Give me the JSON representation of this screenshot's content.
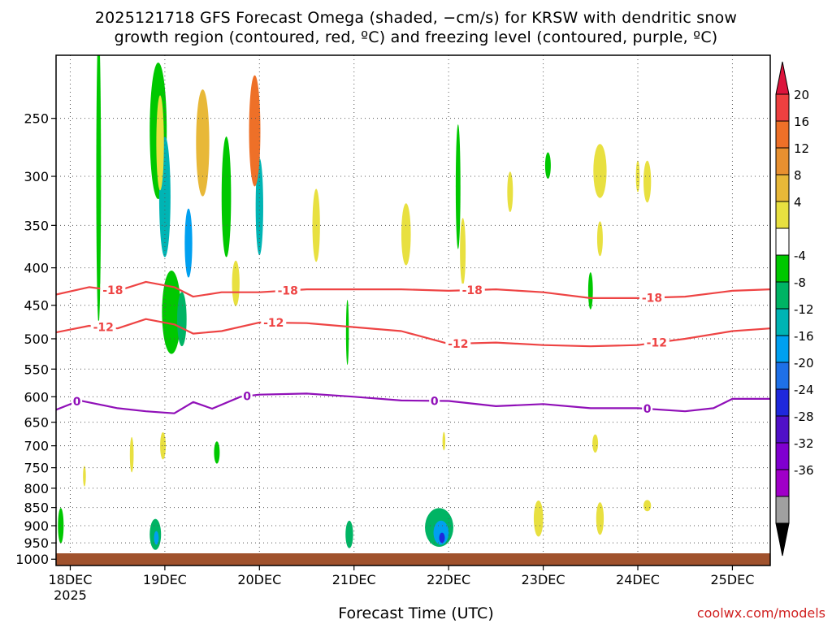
{
  "title_line1": "2025121718 GFS Forecast Omega (shaded, −cm/s) for KRSW with dendritic snow",
  "title_line2": "growth region (contoured, red, ºC) and freezing level (contoured, purple, ºC)",
  "credit": "coolwx.com/models",
  "chart_data": {
    "type": "heatmap",
    "xlabel": "Forecast Time (UTC)",
    "x_tick_labels": [
      "18DEC",
      "19DEC",
      "20DEC",
      "21DEC",
      "22DEC",
      "23DEC",
      "24DEC",
      "25DEC"
    ],
    "x_year_label": "2025",
    "x_range_days": [
      -0.15,
      7.4
    ],
    "y_tick_labels": [
      "250",
      "300",
      "350",
      "400",
      "450",
      "500",
      "550",
      "600",
      "650",
      "700",
      "750",
      "800",
      "850",
      "900",
      "950",
      "1000"
    ],
    "y_range_hpa": [
      205,
      1020
    ],
    "colorbar": {
      "labels": [
        "20",
        "16",
        "12",
        "8",
        "4",
        "-4",
        "-8",
        "-12",
        "-16",
        "-20",
        "-24",
        "-28",
        "-32",
        "-36"
      ],
      "colors": [
        "#dc143c",
        "#ee4040",
        "#ee7028",
        "#e89030",
        "#e8b838",
        "#e8e040",
        "#ffffff",
        "#00c800",
        "#00b464",
        "#00b4b4",
        "#00a0f0",
        "#1e70e8",
        "#1e28dc",
        "#5010c8",
        "#8000d0",
        "#a000c8",
        "#a0a0a0",
        "#000000"
      ]
    },
    "series": [
      {
        "name": "-18",
        "color": "#ee4444",
        "x": [
          -0.15,
          0.2,
          0.5,
          0.8,
          1.1,
          1.3,
          1.6,
          2.0,
          2.5,
          3.0,
          3.5,
          4.0,
          4.5,
          5.0,
          5.5,
          6.0,
          6.5,
          7.0,
          7.4
        ],
        "y": [
          435,
          425,
          430,
          418,
          425,
          438,
          432,
          432,
          428,
          428,
          428,
          430,
          428,
          432,
          440,
          440,
          438,
          430,
          428
        ],
        "labels": [
          {
            "x": 0.45,
            "text": "-18"
          },
          {
            "x": 2.3,
            "text": "-18"
          },
          {
            "x": 4.25,
            "text": "-18"
          },
          {
            "x": 6.15,
            "text": "-18"
          }
        ]
      },
      {
        "name": "-12",
        "color": "#ee4444",
        "x": [
          -0.15,
          0.2,
          0.5,
          0.8,
          1.1,
          1.3,
          1.6,
          2.0,
          2.5,
          3.0,
          3.5,
          4.0,
          4.5,
          5.0,
          5.5,
          6.0,
          6.5,
          7.0,
          7.4
        ],
        "y": [
          490,
          480,
          484,
          470,
          478,
          492,
          488,
          475,
          476,
          482,
          488,
          508,
          506,
          510,
          512,
          510,
          500,
          488,
          484
        ],
        "labels": [
          {
            "x": 0.35,
            "text": "-12"
          },
          {
            "x": 2.15,
            "text": "-12"
          },
          {
            "x": 4.1,
            "text": "-12"
          },
          {
            "x": 6.2,
            "text": "-12"
          }
        ]
      },
      {
        "name": "0",
        "color": "#9010b8",
        "x": [
          -0.15,
          0.1,
          0.5,
          0.8,
          1.1,
          1.3,
          1.5,
          1.8,
          2.0,
          2.5,
          3.0,
          3.5,
          4.0,
          4.5,
          5.0,
          5.5,
          6.0,
          6.5,
          6.8,
          7.0,
          7.4
        ],
        "y": [
          625,
          607,
          622,
          628,
          632,
          610,
          623,
          600,
          596,
          594,
          600,
          607,
          608,
          618,
          614,
          622,
          622,
          628,
          622,
          604,
          604
        ],
        "labels": [
          {
            "x": 0.07,
            "text": "0"
          },
          {
            "x": 1.87,
            "text": "0"
          },
          {
            "x": 3.85,
            "text": "0"
          },
          {
            "x": 6.1,
            "text": "0"
          }
        ]
      }
    ],
    "omega_regions": [
      {
        "x": 0.93,
        "y": 260,
        "rx": 0.09,
        "ry": 55,
        "v": -6
      },
      {
        "x": 1.0,
        "y": 320,
        "rx": 0.06,
        "ry": 60,
        "v": -12
      },
      {
        "x": 1.25,
        "y": 370,
        "rx": 0.04,
        "ry": 40,
        "v": -16
      },
      {
        "x": 1.07,
        "y": 460,
        "rx": 0.1,
        "ry": 60,
        "v": -6
      },
      {
        "x": 1.18,
        "y": 470,
        "rx": 0.05,
        "ry": 40,
        "v": -10
      },
      {
        "x": 0.3,
        "y": 300,
        "rx": 0.025,
        "ry": 130,
        "v": -6
      },
      {
        "x": 1.65,
        "y": 320,
        "rx": 0.05,
        "ry": 60,
        "v": -6
      },
      {
        "x": 2.0,
        "y": 330,
        "rx": 0.04,
        "ry": 50,
        "v": -14
      },
      {
        "x": 2.93,
        "y": 490,
        "rx": 0.015,
        "ry": 50,
        "v": -6
      },
      {
        "x": 4.1,
        "y": 310,
        "rx": 0.025,
        "ry": 60,
        "v": -6
      },
      {
        "x": 5.5,
        "y": 430,
        "rx": 0.025,
        "ry": 25,
        "v": -6
      },
      {
        "x": 5.05,
        "y": 290,
        "rx": 0.03,
        "ry": 12,
        "v": -6
      },
      {
        "x": 3.9,
        "y": 905,
        "rx": 0.15,
        "ry": 55,
        "v": -10
      },
      {
        "x": 3.92,
        "y": 920,
        "rx": 0.08,
        "ry": 35,
        "v": -16
      },
      {
        "x": 3.93,
        "y": 935,
        "rx": 0.03,
        "ry": 15,
        "v": -24
      },
      {
        "x": 0.9,
        "y": 925,
        "rx": 0.06,
        "ry": 45,
        "v": -8
      },
      {
        "x": 0.91,
        "y": 935,
        "rx": 0.025,
        "ry": 20,
        "v": -16
      },
      {
        "x": 2.95,
        "y": 925,
        "rx": 0.04,
        "ry": 40,
        "v": -8
      },
      {
        "x": 1.55,
        "y": 715,
        "rx": 0.03,
        "ry": 25,
        "v": -6
      },
      {
        "x": -0.1,
        "y": 900,
        "rx": 0.03,
        "ry": 50,
        "v": -6
      },
      {
        "x": 0.95,
        "y": 270,
        "rx": 0.04,
        "ry": 40,
        "v": 6
      },
      {
        "x": 1.4,
        "y": 270,
        "rx": 0.07,
        "ry": 45,
        "v": 8
      },
      {
        "x": 1.95,
        "y": 260,
        "rx": 0.06,
        "ry": 45,
        "v": 12
      },
      {
        "x": 2.6,
        "y": 350,
        "rx": 0.04,
        "ry": 40,
        "v": 6
      },
      {
        "x": 3.55,
        "y": 360,
        "rx": 0.05,
        "ry": 35,
        "v": 6
      },
      {
        "x": 4.15,
        "y": 380,
        "rx": 0.03,
        "ry": 40,
        "v": 6
      },
      {
        "x": 4.95,
        "y": 880,
        "rx": 0.05,
        "ry": 50,
        "v": 6
      },
      {
        "x": 5.6,
        "y": 295,
        "rx": 0.07,
        "ry": 25,
        "v": 6
      },
      {
        "x": 5.6,
        "y": 365,
        "rx": 0.03,
        "ry": 20,
        "v": 6
      },
      {
        "x": 5.6,
        "y": 880,
        "rx": 0.04,
        "ry": 45,
        "v": 6
      },
      {
        "x": 6.1,
        "y": 305,
        "rx": 0.04,
        "ry": 20,
        "v": 6
      },
      {
        "x": 6.1,
        "y": 845,
        "rx": 0.04,
        "ry": 15,
        "v": 6
      },
      {
        "x": 5.55,
        "y": 695,
        "rx": 0.03,
        "ry": 20,
        "v": 6
      },
      {
        "x": 0.65,
        "y": 720,
        "rx": 0.02,
        "ry": 40,
        "v": 6
      },
      {
        "x": 0.98,
        "y": 700,
        "rx": 0.03,
        "ry": 30,
        "v": 6
      },
      {
        "x": 1.75,
        "y": 420,
        "rx": 0.04,
        "ry": 30,
        "v": 6
      },
      {
        "x": 4.65,
        "y": 315,
        "rx": 0.03,
        "ry": 20,
        "v": 6
      },
      {
        "x": 6.0,
        "y": 300,
        "rx": 0.02,
        "ry": 15,
        "v": 6
      },
      {
        "x": 0.15,
        "y": 770,
        "rx": 0.015,
        "ry": 25,
        "v": 6
      },
      {
        "x": 3.95,
        "y": 690,
        "rx": 0.015,
        "ry": 20,
        "v": 6
      }
    ]
  }
}
